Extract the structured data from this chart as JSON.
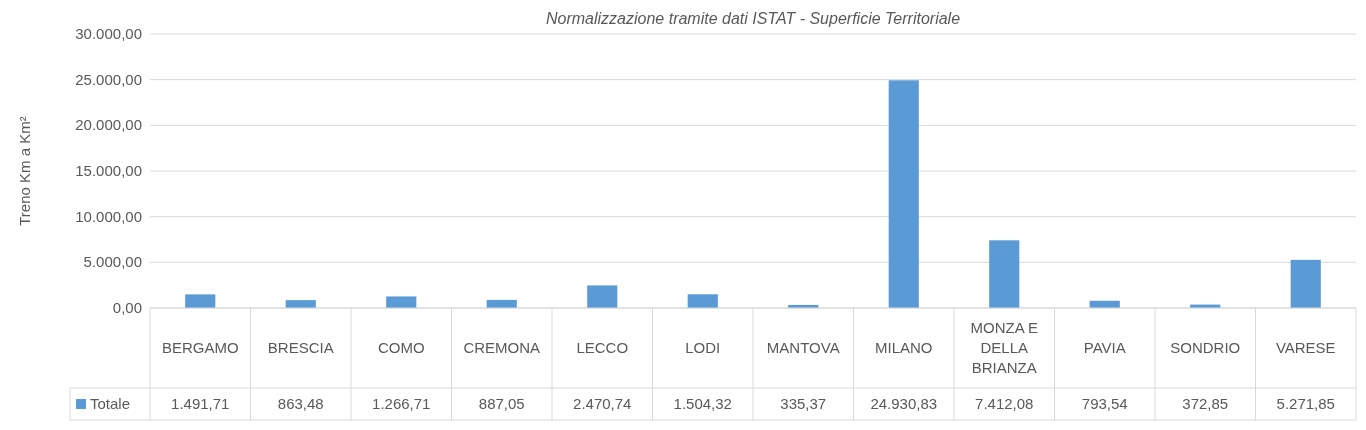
{
  "chart_data": {
    "type": "bar",
    "title": "Normalizzazione tramite dati ISTAT - Superficie Territoriale",
    "ylabel": "Treno Km a Km²",
    "categories": [
      "BERGAMO",
      "BRESCIA",
      "COMO",
      "CREMONA",
      "LECCO",
      "LODI",
      "MANTOVA",
      "MILANO",
      "MONZA E DELLA BRIANZA",
      "PAVIA",
      "SONDRIO",
      "VARESE"
    ],
    "series": [
      {
        "name": "Totale",
        "color": "#5b9bd5",
        "values": [
          1491.71,
          863.48,
          1266.71,
          887.05,
          2470.74,
          1504.32,
          335.37,
          24930.83,
          7412.08,
          793.54,
          372.85,
          5271.85
        ],
        "value_labels": [
          "1.491,71",
          "863,48",
          "1.266,71",
          "887,05",
          "2.470,74",
          "1.504,32",
          "335,37",
          "24.930,83",
          "7.412,08",
          "793,54",
          "372,85",
          "5.271,85"
        ]
      }
    ],
    "ylim": [
      0,
      30000
    ],
    "yticks": [
      {
        "value": 0,
        "label": "0,00"
      },
      {
        "value": 5000,
        "label": "5.000,00"
      },
      {
        "value": 10000,
        "label": "10.000,00"
      },
      {
        "value": 15000,
        "label": "15.000,00"
      },
      {
        "value": 20000,
        "label": "20.000,00"
      },
      {
        "value": 25000,
        "label": "25.000,00"
      },
      {
        "value": 30000,
        "label": "30.000,00"
      }
    ],
    "grid": true,
    "legend": "bottom"
  }
}
